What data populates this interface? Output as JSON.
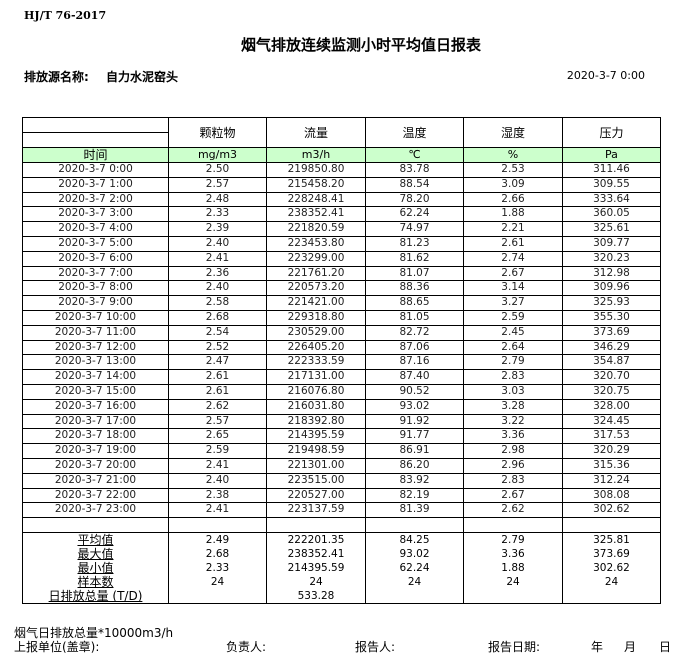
{
  "standard": "HJ/T  76-2017",
  "title": "烟气排放连续监测小时平均值日报表",
  "source_label": "排放源名称:",
  "source_name": "自力水泥窑头",
  "report_time": "2020-3-7 0:00",
  "table": {
    "headers": [
      "颗粒物",
      "流量",
      "温度",
      "湿度",
      "压力"
    ],
    "time_label": "时间",
    "units": [
      "mg/m3",
      "m3/h",
      "℃",
      "%",
      "Pa"
    ],
    "header_color": "#ccffcc",
    "rows": [
      [
        "2020-3-7 0:00",
        "2.50",
        "219850.80",
        "83.78",
        "2.53",
        "311.46"
      ],
      [
        "2020-3-7 1:00",
        "2.57",
        "215458.20",
        "88.54",
        "3.09",
        "309.55"
      ],
      [
        "2020-3-7 2:00",
        "2.48",
        "228248.41",
        "78.20",
        "2.66",
        "333.64"
      ],
      [
        "2020-3-7 3:00",
        "2.33",
        "238352.41",
        "62.24",
        "1.88",
        "360.05"
      ],
      [
        "2020-3-7 4:00",
        "2.39",
        "221820.59",
        "74.97",
        "2.21",
        "325.61"
      ],
      [
        "2020-3-7 5:00",
        "2.40",
        "223453.80",
        "81.23",
        "2.61",
        "309.77"
      ],
      [
        "2020-3-7 6:00",
        "2.41",
        "223299.00",
        "81.62",
        "2.74",
        "320.23"
      ],
      [
        "2020-3-7 7:00",
        "2.36",
        "221761.20",
        "81.07",
        "2.67",
        "312.98"
      ],
      [
        "2020-3-7 8:00",
        "2.40",
        "220573.20",
        "88.36",
        "3.14",
        "309.96"
      ],
      [
        "2020-3-7 9:00",
        "2.58",
        "221421.00",
        "88.65",
        "3.27",
        "325.93"
      ],
      [
        "2020-3-7 10:00",
        "2.68",
        "229318.80",
        "81.05",
        "2.59",
        "355.30"
      ],
      [
        "2020-3-7 11:00",
        "2.54",
        "230529.00",
        "82.72",
        "2.45",
        "373.69"
      ],
      [
        "2020-3-7 12:00",
        "2.52",
        "226405.20",
        "87.06",
        "2.64",
        "346.29"
      ],
      [
        "2020-3-7 13:00",
        "2.47",
        "222333.59",
        "87.16",
        "2.79",
        "354.87"
      ],
      [
        "2020-3-7 14:00",
        "2.61",
        "217131.00",
        "87.40",
        "2.83",
        "320.70"
      ],
      [
        "2020-3-7 15:00",
        "2.61",
        "216076.80",
        "90.52",
        "3.03",
        "320.75"
      ],
      [
        "2020-3-7 16:00",
        "2.62",
        "216031.80",
        "93.02",
        "3.28",
        "328.00"
      ],
      [
        "2020-3-7 17:00",
        "2.57",
        "218392.80",
        "91.92",
        "3.22",
        "324.45"
      ],
      [
        "2020-3-7 18:00",
        "2.65",
        "214395.59",
        "91.77",
        "3.36",
        "317.53"
      ],
      [
        "2020-3-7 19:00",
        "2.59",
        "219498.59",
        "86.91",
        "2.98",
        "320.29"
      ],
      [
        "2020-3-7 20:00",
        "2.41",
        "221301.00",
        "86.20",
        "2.96",
        "315.36"
      ],
      [
        "2020-3-7 21:00",
        "2.40",
        "223515.00",
        "83.92",
        "2.83",
        "312.24"
      ],
      [
        "2020-3-7 22:00",
        "2.38",
        "220527.00",
        "82.19",
        "2.67",
        "308.08"
      ],
      [
        "2020-3-7 23:00",
        "2.41",
        "223137.59",
        "81.39",
        "2.62",
        "302.62"
      ]
    ],
    "summary": [
      [
        "平均值",
        "2.49",
        "222201.35",
        "84.25",
        "2.79",
        "325.81"
      ],
      [
        "最大值",
        "2.68",
        "238352.41",
        "93.02",
        "3.36",
        "373.69"
      ],
      [
        "最小值",
        "2.33",
        "214395.59",
        "62.24",
        "1.88",
        "302.62"
      ],
      [
        "样本数",
        "24",
        "24",
        "24",
        "24",
        "24"
      ],
      [
        "日排放总量 (T/D)",
        "",
        "533.28",
        "",
        "",
        ""
      ]
    ]
  },
  "footer": {
    "note": "烟气日排放总量*10000m3/h",
    "unit_label": "上报单位(盖章):",
    "responsible_label": "负责人:",
    "reporter_label": "报告人:",
    "report_date_label": "报告日期:",
    "year": "年",
    "month": "月",
    "day": "日"
  }
}
